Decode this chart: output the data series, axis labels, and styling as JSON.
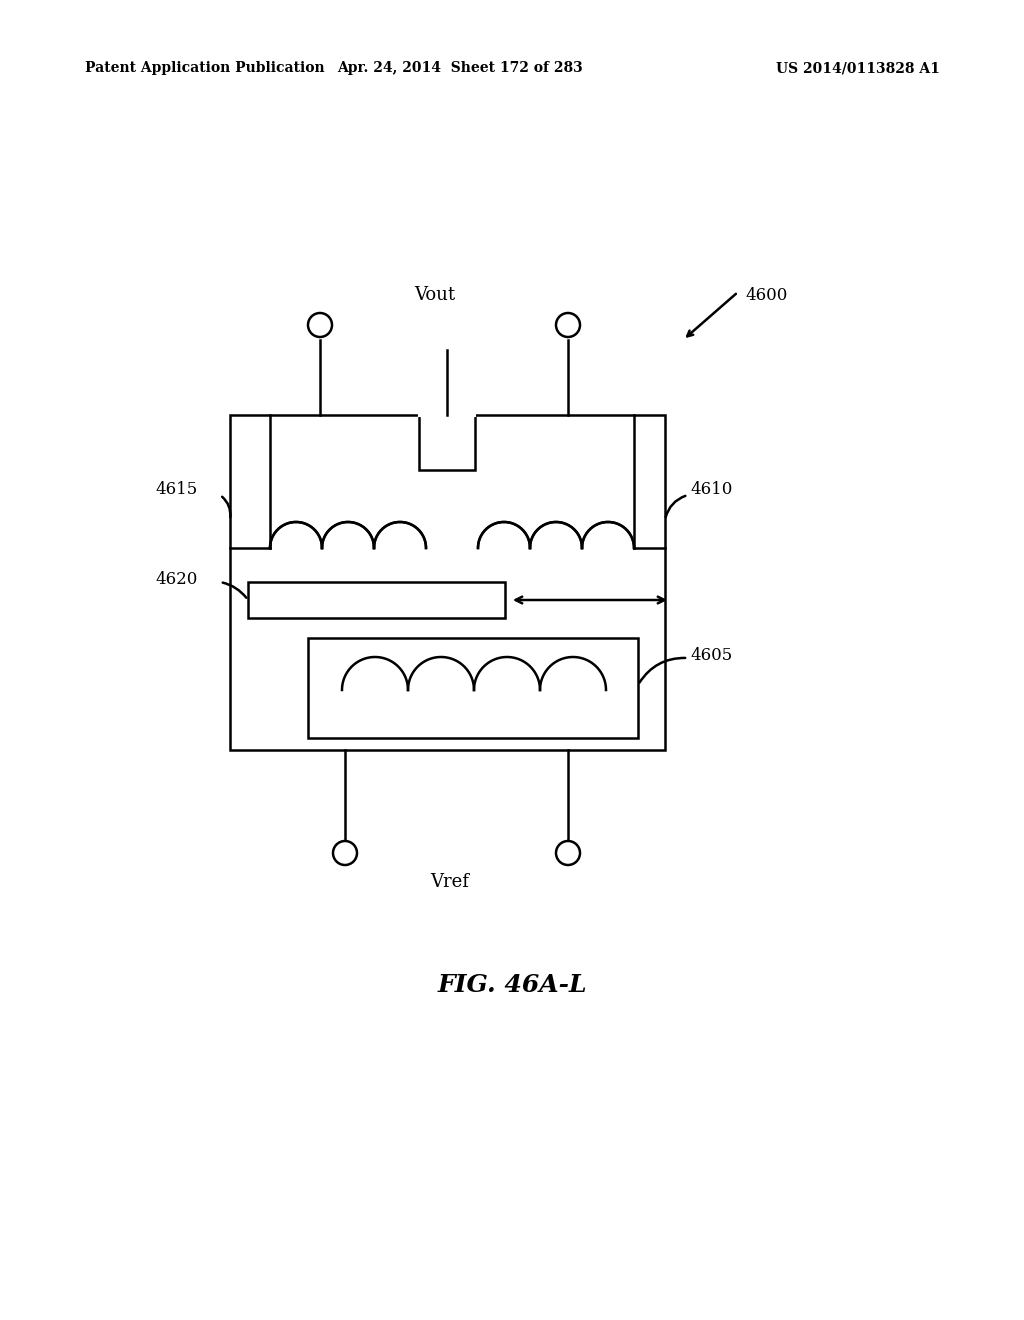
{
  "bg_color": "#ffffff",
  "line_color": "#000000",
  "header_left": "Patent Application Publication",
  "header_mid": "Apr. 24, 2014  Sheet 172 of 283",
  "header_right": "US 2014/0113828 A1",
  "fig_label": "FIG. 46A-L",
  "label_4600": "4600",
  "label_4615": "4615",
  "label_4610": "4610",
  "label_4620": "4620",
  "label_4605": "4605",
  "label_vout": "Vout",
  "label_vref": "Vref"
}
